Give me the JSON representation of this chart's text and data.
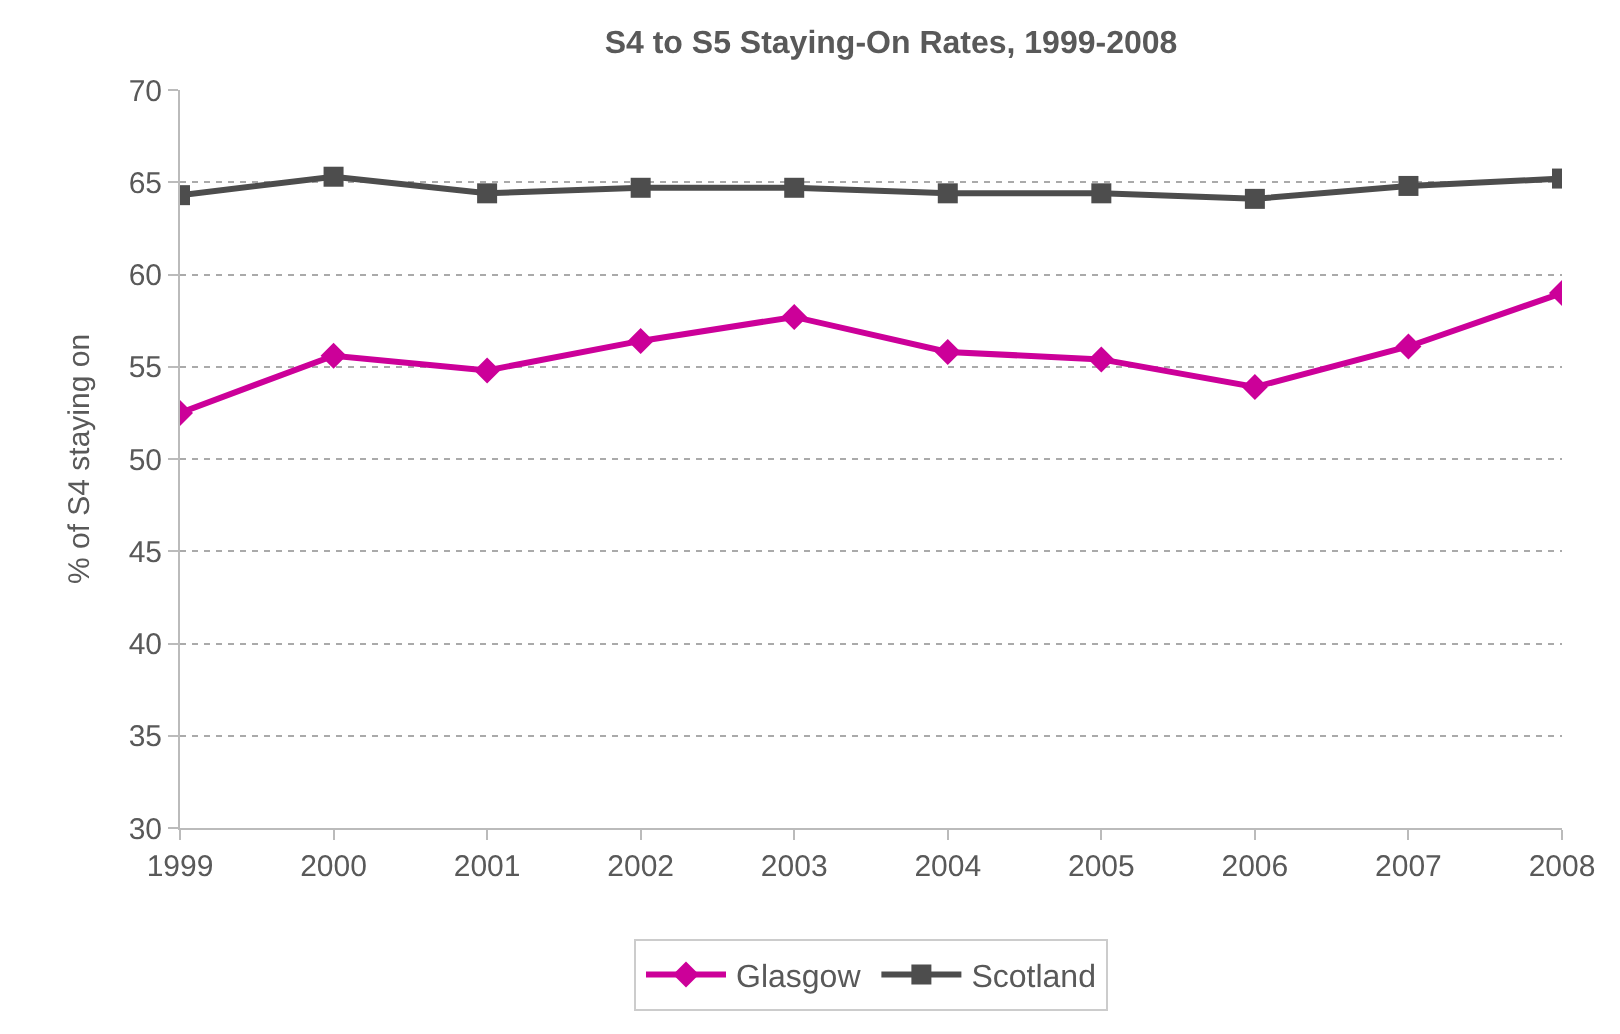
{
  "chart_data": {
    "type": "line",
    "title": "S4 to S5 Staying-On Rates, 1999-2008",
    "ylabel": "% of S4 staying on",
    "x": [
      1999,
      2000,
      2001,
      2002,
      2003,
      2004,
      2005,
      2006,
      2007,
      2008
    ],
    "series": [
      {
        "name": "Glasgow",
        "color": "#cc0099",
        "marker": "diamond",
        "values": [
          52.5,
          55.6,
          54.8,
          56.4,
          57.7,
          55.8,
          55.4,
          53.9,
          56.1,
          59.0
        ]
      },
      {
        "name": "Scotland",
        "color": "#4d4d4d",
        "marker": "square",
        "values": [
          64.3,
          65.3,
          64.4,
          64.7,
          64.7,
          64.4,
          64.4,
          64.1,
          64.8,
          65.2
        ]
      }
    ],
    "xlim": [
      1999,
      2008
    ],
    "xticks": [
      1999,
      2000,
      2001,
      2002,
      2003,
      2004,
      2005,
      2006,
      2007,
      2008
    ],
    "ylim": [
      30,
      70
    ],
    "yticks": [
      30,
      35,
      40,
      45,
      50,
      55,
      60,
      65,
      70
    ],
    "grid": "y",
    "legend": "bottom",
    "line_style": "solid"
  }
}
